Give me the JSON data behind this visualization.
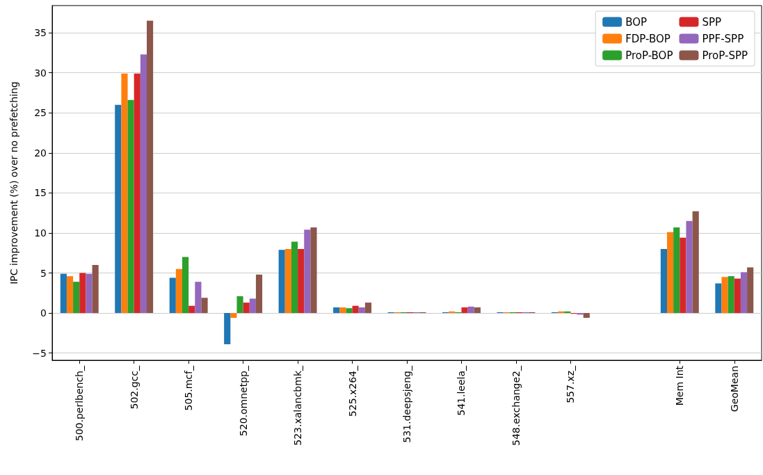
{
  "chart_data": {
    "type": "bar",
    "ylabel": "IPC improvement (%) over no prefetching",
    "categories": [
      "500.perlbench_",
      "502.gcc_",
      "505.mcf_",
      "520.omnetpp_",
      "523.xalancbmk_",
      "525.x264_",
      "531.deepsjeng_",
      "541.leela_",
      "548.exchange2_",
      "557.xz_",
      null,
      "Mem Int",
      "GeoMean"
    ],
    "series": [
      {
        "name": "BOP",
        "color": "#1f77b4",
        "values": [
          4.9,
          26.0,
          4.4,
          -3.9,
          7.9,
          0.7,
          0.1,
          0.1,
          0.1,
          0.1,
          null,
          8.0,
          3.7
        ]
      },
      {
        "name": "FDP-BOP",
        "color": "#ff7f0e",
        "values": [
          4.6,
          29.9,
          5.5,
          -0.6,
          8.0,
          0.7,
          0.1,
          0.2,
          0.1,
          0.2,
          null,
          10.1,
          4.5
        ]
      },
      {
        "name": "ProP-BOP",
        "color": "#2ca02c",
        "values": [
          3.9,
          26.6,
          7.0,
          2.1,
          8.9,
          0.6,
          0.1,
          0.1,
          0.1,
          0.2,
          null,
          10.7,
          4.6
        ]
      },
      {
        "name": "SPP",
        "color": "#d62728",
        "values": [
          5.0,
          29.9,
          0.9,
          1.3,
          8.0,
          0.9,
          0.1,
          0.7,
          0.1,
          -0.1,
          null,
          9.4,
          4.3
        ]
      },
      {
        "name": "PPF-SPP",
        "color": "#9467bd",
        "values": [
          4.9,
          32.3,
          3.9,
          1.8,
          10.4,
          0.7,
          0.1,
          0.8,
          0.1,
          -0.2,
          null,
          11.5,
          5.1
        ]
      },
      {
        "name": "ProP-SPP",
        "color": "#8c564b",
        "values": [
          6.0,
          36.5,
          1.9,
          4.8,
          10.7,
          1.3,
          0.1,
          0.7,
          0.1,
          -0.6,
          null,
          12.7,
          5.7
        ]
      }
    ],
    "ylim": [
      -5.9,
      38.4
    ],
    "yticks": [
      -5,
      0,
      5,
      10,
      15,
      20,
      25,
      30,
      35
    ],
    "grid": "y",
    "legend": "top right"
  }
}
